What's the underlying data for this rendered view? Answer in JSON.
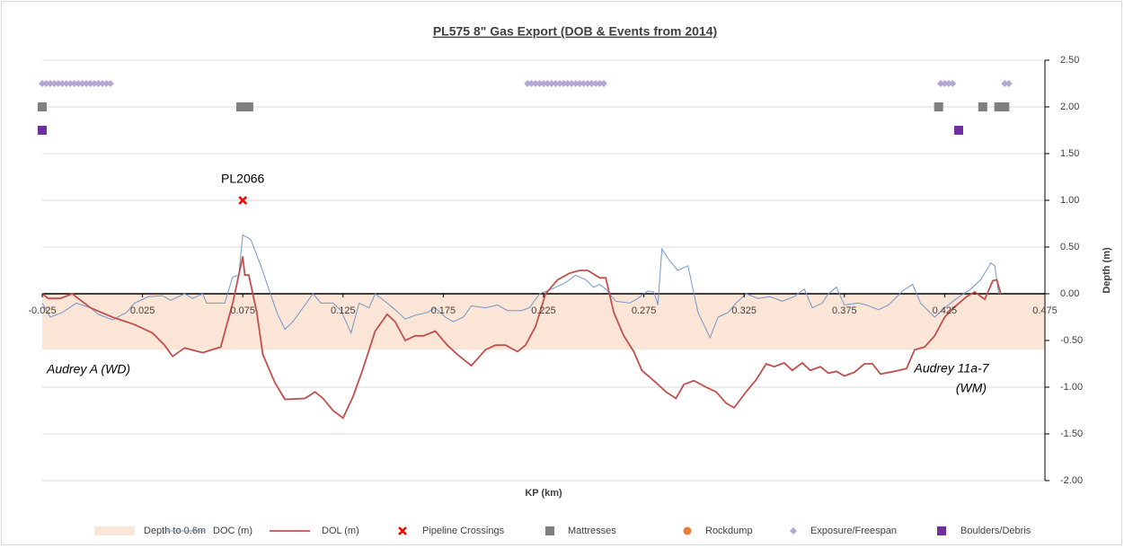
{
  "chart_data": {
    "type": "line",
    "title": "PL575 8\" Gas Export (DOB & Events from 2014)",
    "x_label": "KP (km)",
    "y_label": "Depth (m)",
    "annotations": [
      "PL2066",
      "Audrey A (WD)",
      "Audrey 11a-7",
      "(WM)"
    ],
    "xlim": [
      -0.025,
      0.475
    ],
    "xticks": [
      -0.025,
      0.025,
      0.075,
      0.125,
      0.175,
      0.225,
      0.275,
      0.325,
      0.375,
      0.425,
      0.475
    ],
    "ylim": [
      -2,
      2.5
    ],
    "yticks": [
      {
        "value": 2.5,
        "label": "2.50"
      },
      {
        "value": 2,
        "label": "2.00"
      },
      {
        "value": 1.5,
        "label": "1.50"
      },
      {
        "value": 1,
        "label": "1.00"
      },
      {
        "value": 0.5,
        "label": "0.50"
      },
      {
        "value": 0,
        "label": "0.00"
      },
      {
        "value": -0.5,
        "label": "-0.50"
      },
      {
        "value": -1,
        "label": "-1.00"
      },
      {
        "value": -1.5,
        "label": "-1.50"
      },
      {
        "value": -2,
        "label": "-2.00"
      }
    ],
    "grid": true,
    "legend": "bottom",
    "series": [
      {
        "name": "Depth to 0.6m",
        "type": "area",
        "color": "#fbe5d6",
        "x": [
          -0.025,
          0.475
        ],
        "values": [
          -0.6,
          -0.6
        ]
      },
      {
        "name": "DOC (m)",
        "type": "line",
        "color": "#7396c9",
        "x": [
          -0.025,
          -0.021,
          -0.015,
          -0.008,
          -0.001,
          0.003,
          0.01,
          0.017,
          0.021,
          0.028,
          0.035,
          0.039,
          0.046,
          0.05,
          0.055,
          0.057,
          0.066,
          0.07,
          0.073,
          0.075,
          0.079,
          0.084,
          0.088,
          0.092,
          0.096,
          0.1,
          0.105,
          0.11,
          0.114,
          0.12,
          0.124,
          0.129,
          0.133,
          0.138,
          0.141,
          0.147,
          0.151,
          0.156,
          0.161,
          0.167,
          0.171,
          0.176,
          0.18,
          0.185,
          0.189,
          0.196,
          0.202,
          0.207,
          0.214,
          0.218,
          0.223,
          0.229,
          0.236,
          0.241,
          0.246,
          0.25,
          0.253,
          0.256,
          0.261,
          0.268,
          0.272,
          0.277,
          0.28,
          0.282,
          0.284,
          0.288,
          0.292,
          0.297,
          0.302,
          0.308,
          0.312,
          0.317,
          0.321,
          0.326,
          0.332,
          0.338,
          0.344,
          0.35,
          0.355,
          0.359,
          0.364,
          0.367,
          0.371,
          0.375,
          0.382,
          0.386,
          0.392,
          0.397,
          0.404,
          0.409,
          0.413,
          0.42,
          0.425,
          0.431,
          0.438,
          0.443,
          0.448,
          0.45,
          0.452
        ],
        "values": [
          -0.1,
          -0.25,
          -0.2,
          -0.1,
          -0.15,
          -0.22,
          -0.28,
          -0.2,
          -0.1,
          -0.03,
          -0.02,
          -0.07,
          0.0,
          -0.05,
          0.0,
          -0.1,
          -0.1,
          0.18,
          0.2,
          0.63,
          0.58,
          0.3,
          0.05,
          -0.2,
          -0.38,
          -0.3,
          -0.15,
          0.0,
          -0.1,
          -0.1,
          -0.18,
          -0.42,
          -0.1,
          -0.15,
          0.0,
          -0.1,
          -0.17,
          -0.27,
          -0.23,
          -0.2,
          -0.15,
          -0.25,
          -0.3,
          -0.25,
          -0.13,
          -0.15,
          -0.12,
          -0.18,
          -0.18,
          -0.15,
          0.0,
          0.05,
          0.12,
          0.2,
          0.15,
          0.07,
          0.1,
          0.05,
          -0.08,
          -0.1,
          -0.05,
          0.03,
          0.02,
          -0.12,
          0.48,
          0.35,
          0.25,
          0.3,
          -0.2,
          -0.47,
          -0.25,
          -0.2,
          -0.1,
          0.0,
          -0.05,
          -0.03,
          -0.08,
          -0.03,
          0.05,
          -0.15,
          -0.1,
          0.0,
          0.07,
          -0.12,
          -0.1,
          -0.12,
          -0.17,
          -0.12,
          0.03,
          0.1,
          -0.1,
          -0.25,
          -0.15,
          -0.05,
          0.05,
          0.15,
          0.33,
          0.3,
          0.0
        ]
      },
      {
        "name": "DOL (m)",
        "type": "line",
        "color": "#c0504d",
        "x": [
          -0.025,
          -0.022,
          -0.016,
          -0.01,
          -0.001,
          0.01,
          0.021,
          0.03,
          0.036,
          0.04,
          0.046,
          0.055,
          0.064,
          0.07,
          0.075,
          0.076,
          0.078,
          0.082,
          0.085,
          0.091,
          0.096,
          0.106,
          0.111,
          0.115,
          0.12,
          0.125,
          0.13,
          0.135,
          0.141,
          0.147,
          0.151,
          0.156,
          0.161,
          0.165,
          0.171,
          0.177,
          0.182,
          0.189,
          0.196,
          0.201,
          0.206,
          0.212,
          0.216,
          0.221,
          0.226,
          0.232,
          0.238,
          0.243,
          0.247,
          0.253,
          0.256,
          0.26,
          0.265,
          0.27,
          0.274,
          0.281,
          0.286,
          0.291,
          0.295,
          0.3,
          0.306,
          0.311,
          0.316,
          0.32,
          0.326,
          0.331,
          0.336,
          0.34,
          0.345,
          0.349,
          0.354,
          0.358,
          0.363,
          0.367,
          0.371,
          0.375,
          0.38,
          0.385,
          0.389,
          0.393,
          0.4,
          0.406,
          0.41,
          0.415,
          0.42,
          0.425,
          0.43,
          0.436,
          0.44,
          0.445,
          0.449,
          0.451,
          0.453
        ],
        "values": [
          0.0,
          -0.05,
          -0.05,
          0.0,
          -0.15,
          -0.25,
          -0.33,
          -0.42,
          -0.55,
          -0.67,
          -0.58,
          -0.63,
          -0.57,
          -0.1,
          0.4,
          0.2,
          0.2,
          -0.2,
          -0.65,
          -0.95,
          -1.13,
          -1.12,
          -1.05,
          -1.12,
          -1.25,
          -1.33,
          -1.1,
          -0.8,
          -0.4,
          -0.22,
          -0.3,
          -0.5,
          -0.45,
          -0.45,
          -0.4,
          -0.55,
          -0.65,
          -0.77,
          -0.6,
          -0.55,
          -0.55,
          -0.62,
          -0.55,
          -0.35,
          0.0,
          0.15,
          0.22,
          0.25,
          0.25,
          0.17,
          0.17,
          -0.2,
          -0.45,
          -0.62,
          -0.82,
          -0.95,
          -1.05,
          -1.12,
          -0.97,
          -0.93,
          -1.0,
          -1.05,
          -1.17,
          -1.22,
          -1.05,
          -0.92,
          -0.75,
          -0.78,
          -0.74,
          -0.82,
          -0.74,
          -0.82,
          -0.78,
          -0.85,
          -0.83,
          -0.88,
          -0.84,
          -0.75,
          -0.75,
          -0.86,
          -0.83,
          -0.8,
          -0.6,
          -0.57,
          -0.45,
          -0.25,
          -0.14,
          -0.03,
          0.02,
          -0.06,
          0.14,
          0.15,
          0.0
        ]
      },
      {
        "name": "Pipeline Crossings",
        "type": "scatter",
        "marker": "x",
        "color": "#ff0000",
        "x": [
          0.075
        ],
        "values": [
          1.0
        ]
      },
      {
        "name": "Mattresses",
        "type": "scatter",
        "marker": "square",
        "color": "#7f7f7f",
        "x": [
          -0.025,
          0.074,
          0.078,
          0.422,
          0.444,
          0.452,
          0.455
        ],
        "values": [
          2,
          2,
          2,
          2,
          2,
          2,
          2
        ]
      },
      {
        "name": "Rockdump",
        "type": "scatter",
        "marker": "circle",
        "color": "#ed7d31",
        "x": [],
        "values": []
      },
      {
        "name": "Exposure/Freespan",
        "type": "scatter",
        "marker": "diamond",
        "color": "#b4a7d6",
        "x": [
          -0.025,
          -0.023,
          -0.021,
          -0.019,
          -0.017,
          -0.015,
          -0.013,
          -0.011,
          -0.009,
          -0.007,
          -0.005,
          -0.003,
          -0.001,
          0.001,
          0.003,
          0.005,
          0.007,
          0.009,
          0.217,
          0.219,
          0.221,
          0.223,
          0.225,
          0.227,
          0.229,
          0.231,
          0.233,
          0.235,
          0.237,
          0.239,
          0.241,
          0.243,
          0.245,
          0.247,
          0.249,
          0.251,
          0.253,
          0.255,
          0.423,
          0.425,
          0.427,
          0.429,
          0.455,
          0.457
        ],
        "values": [
          2.25,
          2.25,
          2.25,
          2.25,
          2.25,
          2.25,
          2.25,
          2.25,
          2.25,
          2.25,
          2.25,
          2.25,
          2.25,
          2.25,
          2.25,
          2.25,
          2.25,
          2.25,
          2.25,
          2.25,
          2.25,
          2.25,
          2.25,
          2.25,
          2.25,
          2.25,
          2.25,
          2.25,
          2.25,
          2.25,
          2.25,
          2.25,
          2.25,
          2.25,
          2.25,
          2.25,
          2.25,
          2.25,
          2.25,
          2.25,
          2.25,
          2.25,
          2.25,
          2.25
        ]
      },
      {
        "name": "Boulders/Debris",
        "type": "scatter",
        "marker": "square",
        "color": "#7030a0",
        "x": [
          -0.025,
          0.432
        ],
        "values": [
          1.75,
          1.75
        ]
      }
    ]
  }
}
